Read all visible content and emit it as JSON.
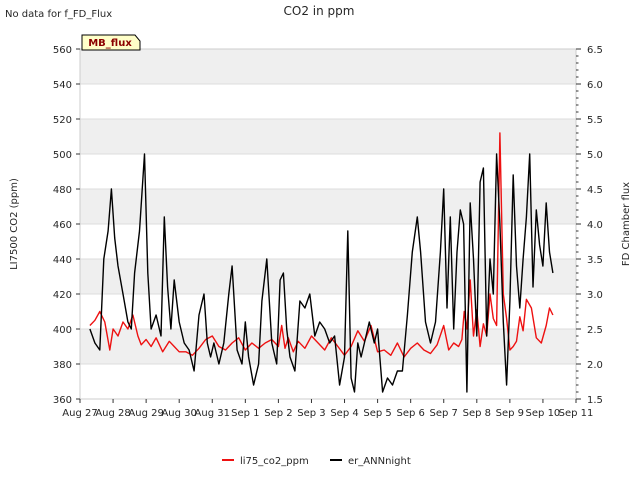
{
  "page_title": "CO2 in ppm",
  "status_note": "No data for f_FD_Flux",
  "badge_label": "MB_flux",
  "colors": {
    "band": "#efefef",
    "series_li75": "#ee1111",
    "series_ann": "#000000",
    "badge_fill": "#ffffc8",
    "badge_text": "#8b0000"
  },
  "chart_data": {
    "type": "line",
    "title": "CO2 in ppm",
    "xlabel": "",
    "ylabel": "LI7500 CO2 (ppm)",
    "ylabel_right": "FD Chamber flux",
    "xlim": [
      0,
      15
    ],
    "ylim": [
      360,
      560
    ],
    "ylim_right": [
      1.5,
      6.5
    ],
    "x_ticks": [
      0,
      1,
      2,
      3,
      4,
      5,
      6,
      7,
      8,
      9,
      10,
      11,
      12,
      13,
      14,
      15
    ],
    "x_tick_labels": [
      "Aug 27",
      "Aug 28",
      "Aug 29",
      "Aug 30",
      "Aug 31",
      "Sep 1",
      "Sep 2",
      "Sep 3",
      "Sep 4",
      "Sep 5",
      "Sep 6",
      "Sep 7",
      "Sep 8",
      "Sep 9",
      "Sep 10",
      "Sep 11"
    ],
    "y_ticks": [
      360,
      380,
      400,
      420,
      440,
      460,
      480,
      500,
      520,
      540,
      560
    ],
    "y_tick_labels": [
      "360",
      "380",
      "400",
      "420",
      "440",
      "460",
      "480",
      "500",
      "520",
      "540",
      "560"
    ],
    "y_ticks_right": [
      1.5,
      2.0,
      2.5,
      3.0,
      3.5,
      4.0,
      4.5,
      5.0,
      5.5,
      6.0,
      6.5
    ],
    "y_tick_labels_right": [
      "1.5",
      "2.0",
      "2.5",
      "3.0",
      "3.5",
      "4.0",
      "4.5",
      "5.0",
      "5.5",
      "6.0",
      "6.5"
    ],
    "grid": true,
    "legend_position": "bottom-center",
    "series": [
      {
        "name": "li75_co2_ppm",
        "color": "#ee1111",
        "axis": "left",
        "x": [
          0.3,
          0.45,
          0.6,
          0.75,
          0.9,
          1.0,
          1.15,
          1.3,
          1.45,
          1.6,
          1.75,
          1.85,
          2.0,
          2.15,
          2.3,
          2.5,
          2.7,
          2.85,
          3.0,
          3.2,
          3.4,
          3.6,
          3.8,
          4.0,
          4.2,
          4.4,
          4.6,
          4.8,
          5.0,
          5.2,
          5.4,
          5.6,
          5.8,
          6.0,
          6.1,
          6.2,
          6.3,
          6.45,
          6.6,
          6.8,
          7.0,
          7.2,
          7.4,
          7.6,
          7.8,
          8.0,
          8.2,
          8.4,
          8.6,
          8.8,
          9.0,
          9.2,
          9.4,
          9.6,
          9.8,
          10.0,
          10.2,
          10.4,
          10.6,
          10.8,
          11.0,
          11.15,
          11.3,
          11.45,
          11.55,
          11.62,
          11.7,
          11.8,
          11.9,
          12.0,
          12.1,
          12.2,
          12.3,
          12.4,
          12.5,
          12.6,
          12.7,
          12.8,
          12.9,
          13.0,
          13.1,
          13.2,
          13.3,
          13.4,
          13.5,
          13.65,
          13.8,
          13.95,
          14.1,
          14.2,
          14.3
        ],
        "y": [
          402,
          405,
          410,
          404,
          388,
          400,
          396,
          404,
          400,
          408,
          396,
          391,
          394,
          390,
          395,
          387,
          393,
          390,
          387,
          387,
          385,
          389,
          394,
          396,
          390,
          388,
          392,
          395,
          388,
          392,
          389,
          392,
          394,
          390,
          402,
          389,
          395,
          387,
          393,
          389,
          396,
          392,
          388,
          395,
          390,
          385,
          390,
          399,
          393,
          402,
          387,
          388,
          385,
          392,
          384,
          389,
          392,
          388,
          386,
          391,
          402,
          388,
          392,
          390,
          394,
          410,
          400,
          428,
          396,
          411,
          390,
          403,
          396,
          420,
          406,
          402,
          512,
          420,
          406,
          388,
          390,
          393,
          407,
          399,
          417,
          412,
          395,
          392,
          402,
          412,
          408
        ]
      },
      {
        "name": "er_ANNnight",
        "color": "#000000",
        "axis": "right",
        "x": [
          0.3,
          0.45,
          0.6,
          0.72,
          0.85,
          0.95,
          1.05,
          1.15,
          1.3,
          1.45,
          1.55,
          1.65,
          1.8,
          1.95,
          2.05,
          2.15,
          2.3,
          2.45,
          2.55,
          2.65,
          2.75,
          2.85,
          3.0,
          3.15,
          3.3,
          3.45,
          3.6,
          3.75,
          3.85,
          3.95,
          4.05,
          4.2,
          4.35,
          4.5,
          4.6,
          4.75,
          4.9,
          5.0,
          5.1,
          5.25,
          5.4,
          5.5,
          5.65,
          5.8,
          5.95,
          6.05,
          6.15,
          6.25,
          6.35,
          6.5,
          6.65,
          6.8,
          6.95,
          7.1,
          7.25,
          7.4,
          7.55,
          7.7,
          7.85,
          8.0,
          8.1,
          8.2,
          8.3,
          8.4,
          8.5,
          8.6,
          8.75,
          8.9,
          9.0,
          9.15,
          9.3,
          9.45,
          9.6,
          9.75,
          9.9,
          10.05,
          10.2,
          10.3,
          10.45,
          10.6,
          10.75,
          10.9,
          11.0,
          11.1,
          11.2,
          11.3,
          11.4,
          11.5,
          11.6,
          11.7,
          11.8,
          11.9,
          12.0,
          12.1,
          12.2,
          12.3,
          12.4,
          12.5,
          12.6,
          12.7,
          12.8,
          12.9,
          13.0,
          13.1,
          13.2,
          13.3,
          13.4,
          13.5,
          13.6,
          13.7,
          13.8,
          13.9,
          14.0,
          14.1,
          14.2,
          14.3
        ],
        "y": [
          2.5,
          2.3,
          2.2,
          3.5,
          3.9,
          4.5,
          3.8,
          3.4,
          3.0,
          2.6,
          2.5,
          3.3,
          3.9,
          5.0,
          3.3,
          2.5,
          2.7,
          2.4,
          4.1,
          3.1,
          2.5,
          3.2,
          2.6,
          2.3,
          2.2,
          1.9,
          2.7,
          3.0,
          2.3,
          2.1,
          2.3,
          2.0,
          2.3,
          3.0,
          3.4,
          2.2,
          2.0,
          2.6,
          2.1,
          1.7,
          2.0,
          2.9,
          3.5,
          2.3,
          2.0,
          3.2,
          3.3,
          2.5,
          2.1,
          1.9,
          2.9,
          2.8,
          3.0,
          2.4,
          2.6,
          2.5,
          2.3,
          2.4,
          1.7,
          2.1,
          3.9,
          1.8,
          1.6,
          2.3,
          2.1,
          2.3,
          2.6,
          2.3,
          2.5,
          1.6,
          1.8,
          1.7,
          1.9,
          1.9,
          2.7,
          3.6,
          4.1,
          3.6,
          2.6,
          2.3,
          2.6,
          3.6,
          4.5,
          2.8,
          4.1,
          2.5,
          3.6,
          4.2,
          4.0,
          1.6,
          4.3,
          3.5,
          2.4,
          4.6,
          4.8,
          2.4,
          3.5,
          3.0,
          5.0,
          4.0,
          2.6,
          1.7,
          2.9,
          4.7,
          3.4,
          2.8,
          3.5,
          4.1,
          5.0,
          3.1,
          4.2,
          3.7,
          3.4,
          4.3,
          3.6,
          3.3
        ]
      }
    ],
    "legend": [
      {
        "label": "li75_co2_ppm",
        "color": "#ee1111"
      },
      {
        "label": "er_ANNnight",
        "color": "#000000"
      }
    ]
  }
}
